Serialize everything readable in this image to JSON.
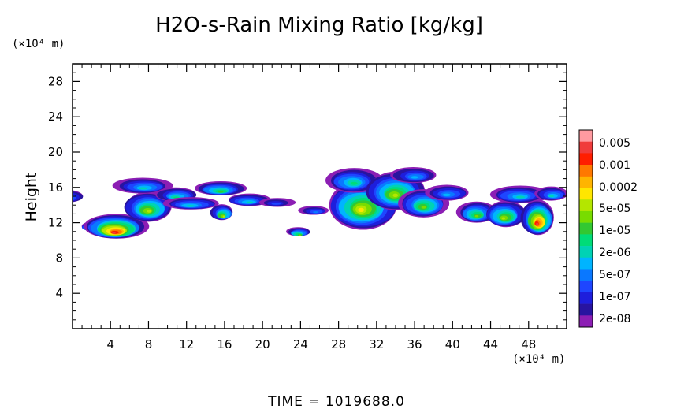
{
  "chart_data": {
    "type": "heatmap",
    "title": "H2O-s-Rain Mixing Ratio [kg/kg]",
    "ylabel": "Height",
    "x_unit": "(×10⁴ m)",
    "y_unit": "(×10⁴ m)",
    "xlim": [
      0,
      52
    ],
    "ylim": [
      0,
      30
    ],
    "x_ticks": [
      4,
      8,
      12,
      16,
      20,
      24,
      28,
      32,
      36,
      40,
      44,
      48
    ],
    "y_ticks": [
      4,
      8,
      12,
      16,
      20,
      24,
      28
    ],
    "x_tick_labels": [
      "4",
      "8",
      "12",
      "16",
      "20",
      "24",
      "28",
      "32",
      "36",
      "40",
      "44",
      "48"
    ],
    "y_tick_labels": [
      "4",
      "8",
      "12",
      "16",
      "20",
      "24",
      "28"
    ],
    "colorbar": {
      "labels": [
        "0.005",
        "0.001",
        "0.0002",
        "5e-05",
        "1e-05",
        "2e-06",
        "5e-07",
        "1e-07",
        "2e-08"
      ],
      "colors": [
        "#ff9aa0",
        "#f03c3c",
        "#ff1e00",
        "#ff7800",
        "#ffb400",
        "#ffe600",
        "#b4e600",
        "#78dc00",
        "#32c832",
        "#00dc78",
        "#00d2b4",
        "#00b4ff",
        "#0a78ff",
        "#1e46ff",
        "#1e1edc",
        "#2814a0",
        "#8c1eb4"
      ]
    },
    "footer": "TIME = 1019688.0",
    "regions": [
      {
        "x": -0.5,
        "y": 15.0,
        "rx": 1.6,
        "ry": 0.7,
        "level": 0.35
      },
      {
        "x": 1.8,
        "y": 11.6,
        "rx": 1.0,
        "ry": 0.5,
        "level": 0.5
      },
      {
        "x": 4.5,
        "y": 11.6,
        "rx": 3.2,
        "ry": 1.4,
        "level": 0.95
      },
      {
        "x": 8.0,
        "y": 13.8,
        "rx": 2.6,
        "ry": 1.7,
        "level": 0.62
      },
      {
        "x": 7.5,
        "y": 16.2,
        "rx": 3.0,
        "ry": 0.9,
        "level": 0.35
      },
      {
        "x": 11.0,
        "y": 15.2,
        "rx": 2.2,
        "ry": 0.8,
        "level": 0.45
      },
      {
        "x": 12.5,
        "y": 14.2,
        "rx": 3.0,
        "ry": 0.7,
        "level": 0.4
      },
      {
        "x": 15.5,
        "y": 15.9,
        "rx": 2.6,
        "ry": 0.8,
        "level": 0.5
      },
      {
        "x": 18.5,
        "y": 14.6,
        "rx": 2.4,
        "ry": 0.7,
        "level": 0.35
      },
      {
        "x": 21.5,
        "y": 14.3,
        "rx": 1.8,
        "ry": 0.5,
        "level": 0.2
      },
      {
        "x": 15.8,
        "y": 13.2,
        "rx": 1.2,
        "ry": 0.9,
        "level": 0.65
      },
      {
        "x": 25.5,
        "y": 13.4,
        "rx": 1.6,
        "ry": 0.5,
        "level": 0.25
      },
      {
        "x": 23.8,
        "y": 11.0,
        "rx": 1.2,
        "ry": 0.5,
        "level": 0.55
      },
      {
        "x": 30.5,
        "y": 14.0,
        "rx": 3.8,
        "ry": 2.8,
        "level": 0.7
      },
      {
        "x": 29.5,
        "y": 16.8,
        "rx": 2.8,
        "ry": 1.4,
        "level": 0.45
      },
      {
        "x": 34.0,
        "y": 15.6,
        "rx": 3.2,
        "ry": 2.2,
        "level": 0.6
      },
      {
        "x": 37.0,
        "y": 14.2,
        "rx": 2.6,
        "ry": 1.6,
        "level": 0.55
      },
      {
        "x": 36.0,
        "y": 17.4,
        "rx": 2.4,
        "ry": 0.9,
        "level": 0.3
      },
      {
        "x": 39.5,
        "y": 15.4,
        "rx": 2.4,
        "ry": 0.9,
        "level": 0.3
      },
      {
        "x": 42.5,
        "y": 13.2,
        "rx": 2.0,
        "ry": 1.2,
        "level": 0.55
      },
      {
        "x": 45.5,
        "y": 13.0,
        "rx": 2.2,
        "ry": 1.5,
        "level": 0.6
      },
      {
        "x": 47.0,
        "y": 15.2,
        "rx": 3.0,
        "ry": 1.0,
        "level": 0.35
      },
      {
        "x": 49.0,
        "y": 12.6,
        "rx": 1.7,
        "ry": 2.0,
        "level": 0.92
      },
      {
        "x": 50.5,
        "y": 15.3,
        "rx": 1.8,
        "ry": 0.8,
        "level": 0.4
      }
    ]
  }
}
